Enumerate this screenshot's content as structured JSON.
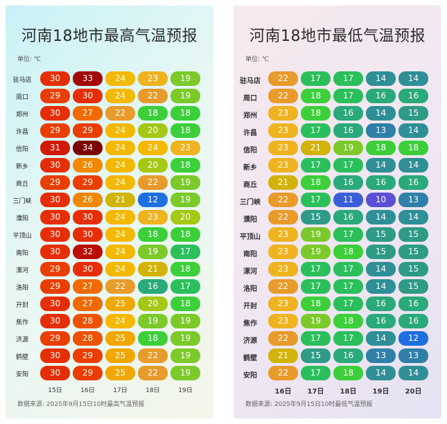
{
  "chart_data": [
    {
      "type": "table",
      "title": "河南18地市最高气温预报",
      "unit": "单位: ℃",
      "source": "数据来源: 2025年9月15日10时最高气温预报",
      "columns": [
        "15日",
        "16日",
        "17日",
        "18日",
        "19日"
      ],
      "rows": [
        {
          "city": "驻马店",
          "values": [
            30,
            33,
            24,
            23,
            19
          ]
        },
        {
          "city": "周口",
          "values": [
            29,
            30,
            24,
            22,
            19
          ]
        },
        {
          "city": "郑州",
          "values": [
            30,
            27,
            22,
            18,
            18
          ]
        },
        {
          "city": "许昌",
          "values": [
            29,
            29,
            24,
            20,
            18
          ]
        },
        {
          "city": "信阳",
          "values": [
            31,
            34,
            24,
            24,
            23
          ]
        },
        {
          "city": "新乡",
          "values": [
            30,
            26,
            24,
            20,
            18
          ]
        },
        {
          "city": "商丘",
          "values": [
            29,
            29,
            24,
            22,
            19
          ]
        },
        {
          "city": "三门峡",
          "values": [
            30,
            26,
            21,
            12,
            19
          ]
        },
        {
          "city": "濮阳",
          "values": [
            30,
            30,
            24,
            23,
            20
          ]
        },
        {
          "city": "平顶山",
          "values": [
            30,
            30,
            24,
            18,
            18
          ]
        },
        {
          "city": "南阳",
          "values": [
            30,
            32,
            24,
            19,
            17
          ]
        },
        {
          "city": "漯河",
          "values": [
            29,
            30,
            24,
            21,
            18
          ]
        },
        {
          "city": "洛阳",
          "values": [
            29,
            27,
            22,
            16,
            17
          ]
        },
        {
          "city": "开封",
          "values": [
            30,
            27,
            25,
            20,
            18
          ]
        },
        {
          "city": "焦作",
          "values": [
            30,
            28,
            24,
            19,
            19
          ]
        },
        {
          "city": "济源",
          "values": [
            29,
            28,
            25,
            18,
            19
          ]
        },
        {
          "city": "鹤壁",
          "values": [
            30,
            29,
            25,
            22,
            19
          ]
        },
        {
          "city": "安阳",
          "values": [
            30,
            29,
            25,
            22,
            19
          ]
        }
      ]
    },
    {
      "type": "table",
      "title": "河南18地市最低气温预报",
      "unit": "单位: ℃",
      "source": "数据来源: 2025年9月15日10时最低气温预报",
      "columns": [
        "16日",
        "17日",
        "18日",
        "19日",
        "20日"
      ],
      "rows": [
        {
          "city": "驻马店",
          "values": [
            22,
            17,
            17,
            14,
            14
          ]
        },
        {
          "city": "周口",
          "values": [
            22,
            18,
            17,
            16,
            16
          ]
        },
        {
          "city": "郑州",
          "values": [
            23,
            18,
            16,
            14,
            15
          ]
        },
        {
          "city": "许昌",
          "values": [
            23,
            17,
            16,
            13,
            14
          ]
        },
        {
          "city": "信阳",
          "values": [
            23,
            21,
            19,
            18,
            18
          ]
        },
        {
          "city": "新乡",
          "values": [
            23,
            17,
            17,
            14,
            14
          ]
        },
        {
          "city": "商丘",
          "values": [
            21,
            18,
            16,
            16,
            16
          ]
        },
        {
          "city": "三门峡",
          "values": [
            22,
            17,
            11,
            10,
            13
          ]
        },
        {
          "city": "濮阳",
          "values": [
            22,
            15,
            16,
            14,
            14
          ]
        },
        {
          "city": "平顶山",
          "values": [
            23,
            19,
            17,
            15,
            15
          ]
        },
        {
          "city": "南阳",
          "values": [
            23,
            19,
            18,
            15,
            15
          ]
        },
        {
          "city": "漯河",
          "values": [
            23,
            17,
            17,
            14,
            15
          ]
        },
        {
          "city": "洛阳",
          "values": [
            22,
            17,
            17,
            14,
            15
          ]
        },
        {
          "city": "开封",
          "values": [
            23,
            18,
            17,
            16,
            16
          ]
        },
        {
          "city": "焦作",
          "values": [
            23,
            19,
            18,
            16,
            16
          ]
        },
        {
          "city": "济源",
          "values": [
            22,
            17,
            17,
            14,
            12
          ]
        },
        {
          "city": "鹤壁",
          "values": [
            21,
            15,
            16,
            13,
            13
          ]
        },
        {
          "city": "安阳",
          "values": [
            22,
            17,
            18,
            14,
            14
          ]
        }
      ]
    }
  ],
  "colors": {
    "10": "#5b4fd4",
    "11": "#3a5fd8",
    "12": "#1e6fe0",
    "13": "#2f7fa8",
    "14": "#2f8f96",
    "15": "#2e9b87",
    "16": "#2aa97a",
    "17": "#2bbf5b",
    "18": "#3ccf3a",
    "19": "#7bca2a",
    "20": "#a4c814",
    "21": "#d2b30a",
    "22": "#e89a2a",
    "23": "#efb320",
    "24": "#f5b800",
    "25": "#f0a800",
    "26": "#f28800",
    "27": "#f06a00",
    "28": "#ec5200",
    "29": "#ea3e00",
    "30": "#e62e06",
    "31": "#d21a06",
    "32": "#b80e06",
    "33": "#a30808",
    "34": "#7d0404"
  }
}
